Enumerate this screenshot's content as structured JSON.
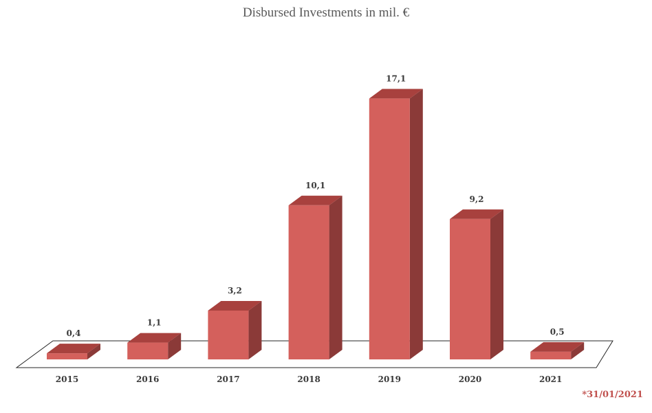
{
  "chart_data": {
    "type": "bar",
    "title": "Disbursed Investments in mil. €",
    "categories": [
      "2015",
      "2016",
      "2017",
      "2018",
      "2019",
      "2020",
      "2021"
    ],
    "values": [
      0.4,
      1.1,
      3.2,
      10.1,
      17.1,
      9.2,
      0.5
    ],
    "data_labels": [
      "0,4",
      "1,1",
      "3,2",
      "10,1",
      "17,1",
      "9,2",
      "0,5"
    ],
    "footnote": "*31/01/2021",
    "grid": false,
    "legend": "none",
    "three_d": true,
    "colors": {
      "front": "#d4605c",
      "top": "#a8413e",
      "side": "#8b3a38",
      "footnote": "#c0504d"
    }
  }
}
